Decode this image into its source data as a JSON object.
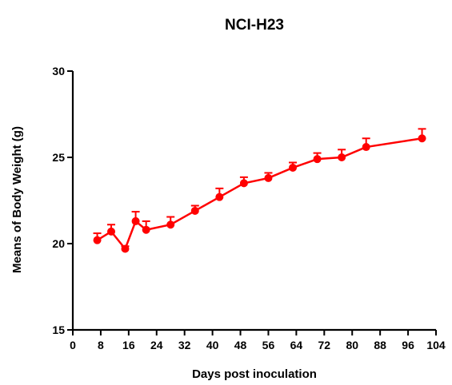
{
  "chart_data": {
    "type": "line",
    "title": "NCI-H23",
    "xlabel": "Days post inoculation",
    "ylabel": "Means of Body Weight (g)",
    "xlim": [
      0,
      104
    ],
    "ylim": [
      15,
      30
    ],
    "x_ticks": [
      0,
      8,
      16,
      24,
      32,
      40,
      48,
      56,
      64,
      72,
      80,
      88,
      96,
      104
    ],
    "y_ticks": [
      15,
      20,
      25,
      30
    ],
    "grid": false,
    "series": [
      {
        "color": "#ff0000",
        "x": [
          7,
          11,
          15,
          18,
          21,
          28,
          35,
          42,
          49,
          56,
          63,
          70,
          77,
          84,
          100
        ],
        "y": [
          20.2,
          20.7,
          19.7,
          21.3,
          20.8,
          21.1,
          21.9,
          22.7,
          23.5,
          23.8,
          24.4,
          24.9,
          25.0,
          25.6,
          26.1
        ],
        "errors": [
          0.4,
          0.4,
          0.15,
          0.55,
          0.5,
          0.45,
          0.3,
          0.5,
          0.35,
          0.3,
          0.3,
          0.35,
          0.45,
          0.5,
          0.55
        ]
      }
    ]
  }
}
